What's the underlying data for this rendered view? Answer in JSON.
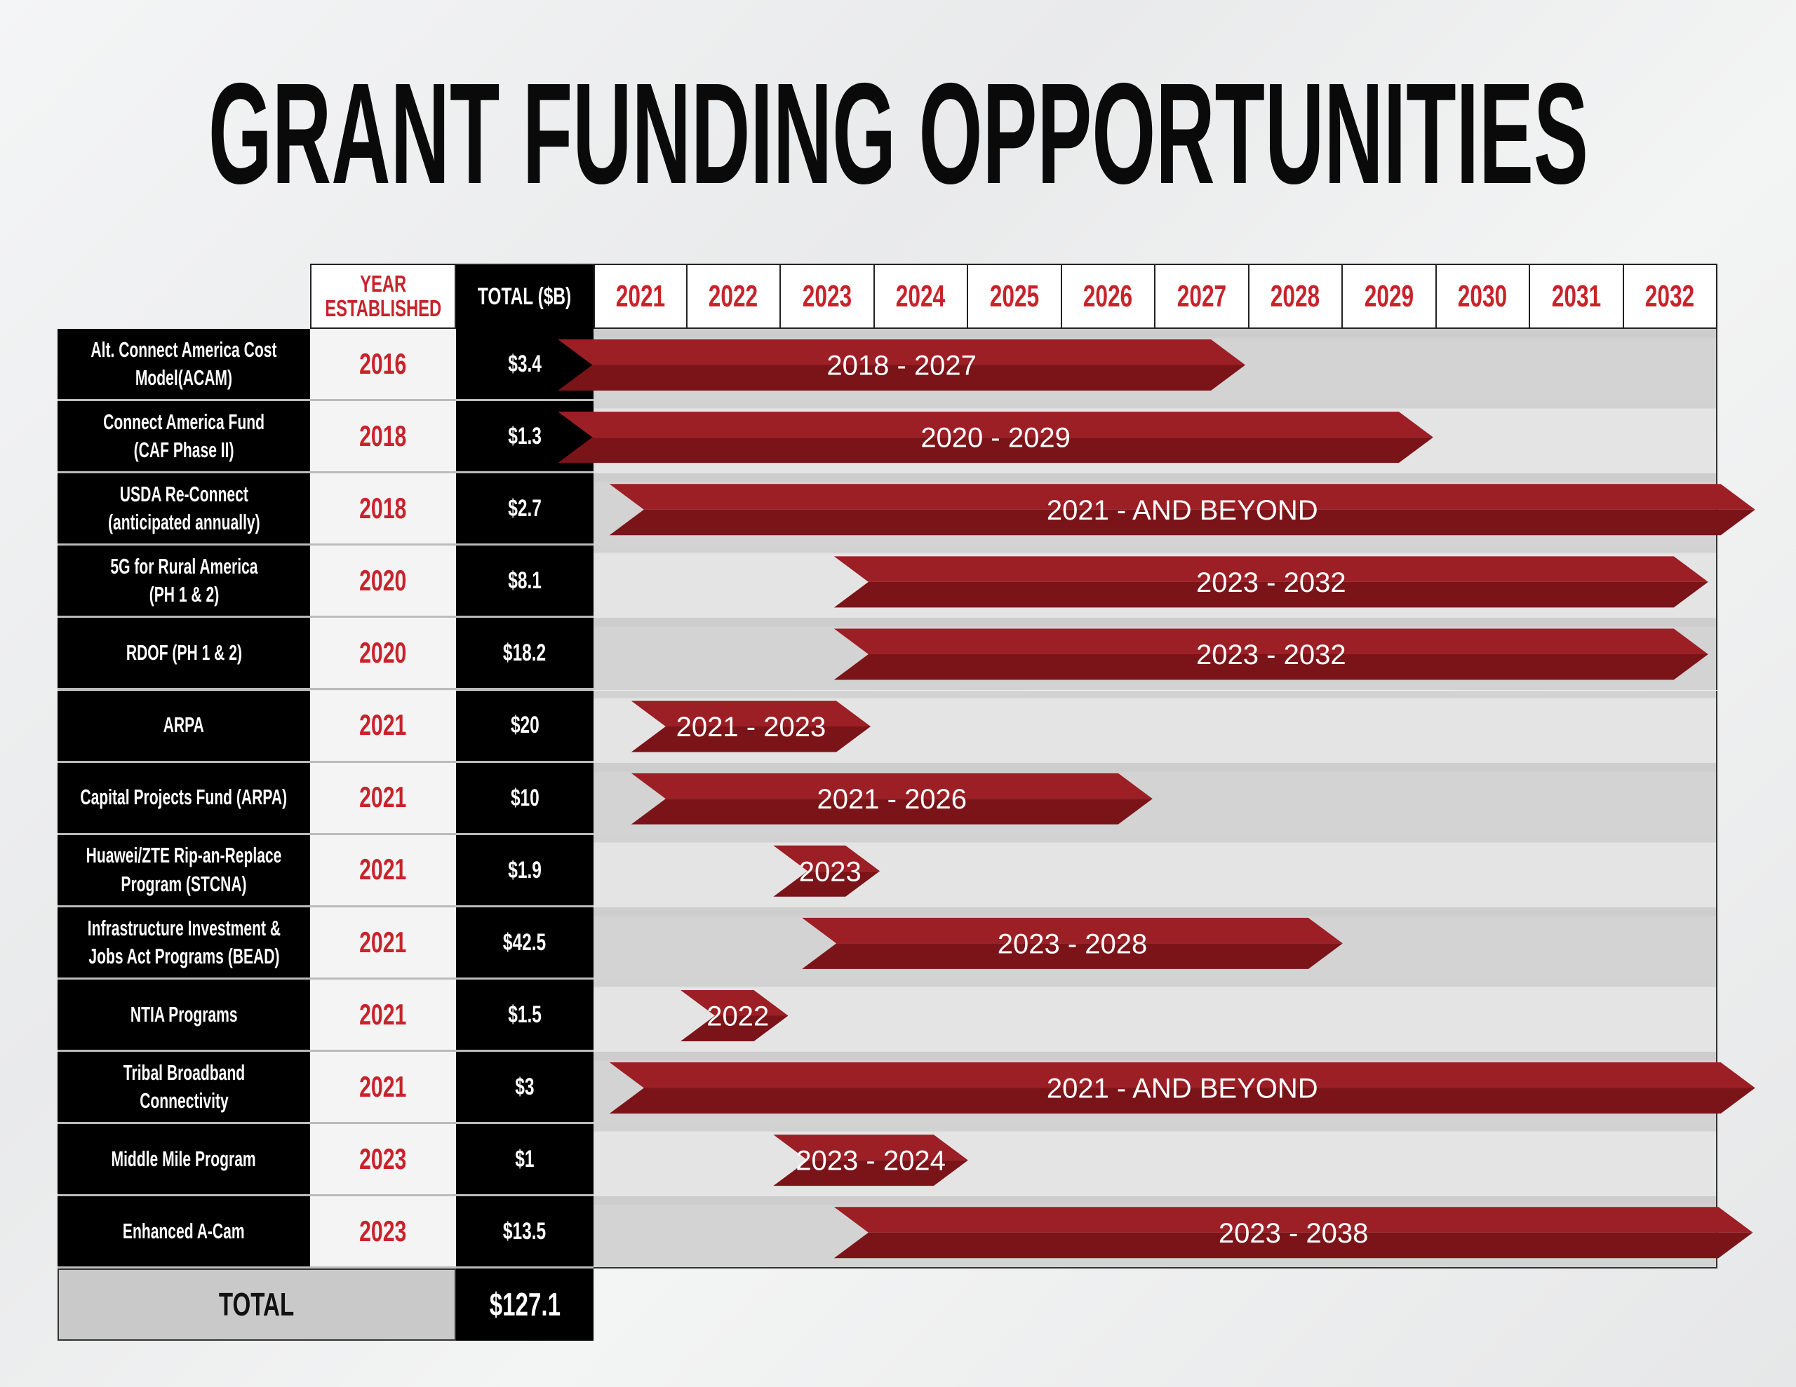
{
  "title": "GRANT FUNDING OPPORTUNITIES",
  "header": {
    "year_established": "YEAR\nESTABLISHED",
    "total": "TOTAL ($B)",
    "years": [
      "2021",
      "2022",
      "2023",
      "2024",
      "2025",
      "2026",
      "2027",
      "2028",
      "2029",
      "2030",
      "2031",
      "2032"
    ]
  },
  "rows": [
    {
      "name": "Alt. Connect America Cost\nModel(ACAM)",
      "established": "2016",
      "total": "$3.4",
      "period": "2018 - 2027"
    },
    {
      "name": "Connect America Fund\n(CAF Phase II)",
      "established": "2018",
      "total": "$1.3",
      "period": "2020 - 2029"
    },
    {
      "name": "USDA Re-Connect\n(anticipated annually)",
      "established": "2018",
      "total": "$2.7",
      "period": "2021 - AND BEYOND"
    },
    {
      "name": "5G for Rural America\n(PH 1 & 2)",
      "established": "2020",
      "total": "$8.1",
      "period": "2023 - 2032"
    },
    {
      "name": "RDOF (PH 1 & 2)",
      "established": "2020",
      "total": "$18.2",
      "period": "2023 - 2032"
    },
    {
      "name": "ARPA",
      "established": "2021",
      "total": "$20",
      "period": "2021 - 2023"
    },
    {
      "name": "Capital Projects Fund (ARPA)",
      "established": "2021",
      "total": "$10",
      "period": "2021 - 2026"
    },
    {
      "name": "Huawei/ZTE Rip-an-Replace\nProgram (STCNA)",
      "established": "2021",
      "total": "$1.9",
      "period": "2023"
    },
    {
      "name": "Infrastructure Investment &\nJobs Act Programs (BEAD)",
      "established": "2021",
      "total": "$42.5",
      "period": "2023 - 2028"
    },
    {
      "name": "NTIA Programs",
      "established": "2021",
      "total": "$1.5",
      "period": "2022"
    },
    {
      "name": "Tribal Broadband\nConnectivity",
      "established": "2021",
      "total": "$3",
      "period": "2021 - AND BEYOND"
    },
    {
      "name": "Middle Mile Program",
      "established": "2023",
      "total": "$1",
      "period": "2023 - 2024"
    },
    {
      "name": "Enhanced A-Cam",
      "established": "2023",
      "total": "$13.5",
      "period": "2023 - 2038"
    }
  ],
  "footer": {
    "label": "TOTAL",
    "total": "$127.1"
  },
  "colors": {
    "accent_red": "#c8232b",
    "bar_top": "#9c1f25",
    "bar_bottom": "#7b1418",
    "black": "#000000"
  }
}
